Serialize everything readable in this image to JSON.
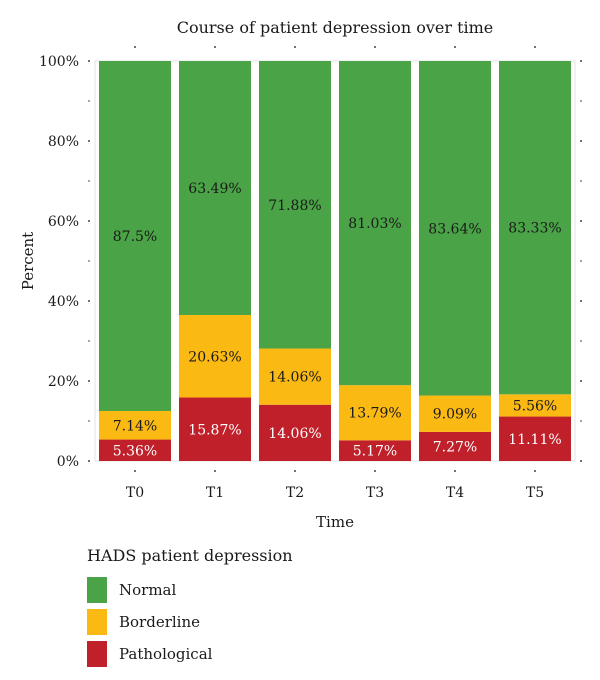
{
  "chart_data": {
    "type": "bar",
    "stacked": true,
    "title": "Course of patient depression over time",
    "xlabel": "Time",
    "ylabel": "Percent",
    "ylim": [
      0,
      100
    ],
    "yticks": [
      "0%",
      "20%",
      "40%",
      "60%",
      "80%",
      "100%"
    ],
    "ytick_values": [
      0,
      20,
      40,
      60,
      80,
      100
    ],
    "categories": [
      "T0",
      "T1",
      "T2",
      "T3",
      "T4",
      "T5"
    ],
    "series": [
      {
        "name": "Pathological",
        "color": "#c0202a",
        "values": [
          5.36,
          15.87,
          14.06,
          5.17,
          7.27,
          11.11
        ],
        "labels": [
          "5.36%",
          "15.87%",
          "14.06%",
          "5.17%",
          "7.27%",
          "11.11%"
        ]
      },
      {
        "name": "Borderline",
        "color": "#fbb914",
        "values": [
          7.14,
          20.63,
          14.06,
          13.79,
          9.09,
          5.56
        ],
        "labels": [
          "7.14%",
          "20.63%",
          "14.06%",
          "13.79%",
          "9.09%",
          "5.56%"
        ]
      },
      {
        "name": "Normal",
        "color": "#4aa447",
        "values": [
          87.5,
          63.49,
          71.88,
          81.03,
          83.64,
          83.33
        ],
        "labels": [
          "87.5%",
          "63.49%",
          "71.88%",
          "81.03%",
          "83.64%",
          "83.33%"
        ]
      }
    ],
    "grid": false,
    "legend": {
      "title": "HADS patient depression",
      "placement": "bottom-left",
      "items": [
        "Normal",
        "Borderline",
        "Pathological"
      ]
    }
  }
}
